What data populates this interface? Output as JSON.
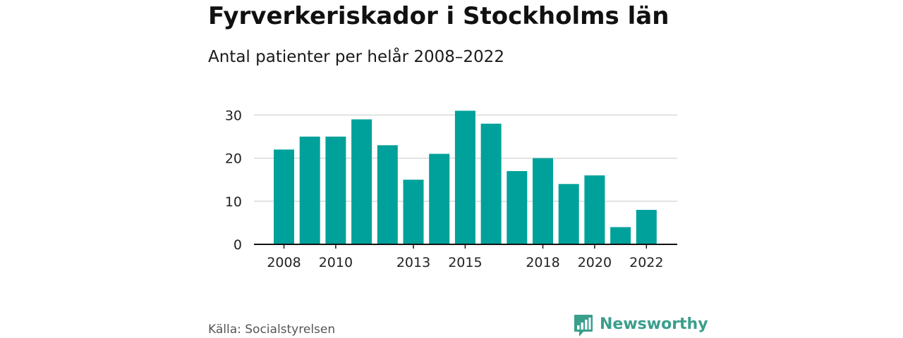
{
  "title": "Fyrverkeriskador i Stockholms län",
  "subtitle": "Antal patienter per helår 2008–2022",
  "source": "Källa: Socialstyrelsen",
  "logo": {
    "text": "Newsworthy",
    "color": "#3a9e8c",
    "icon": "newsworthy-bar-chart-bubble-icon"
  },
  "colors": {
    "bar": "#00a19a",
    "gridline": "#d9d9d9",
    "axis": "#111111"
  },
  "chart_data": {
    "type": "bar",
    "categories": [
      "2008",
      "2009",
      "2010",
      "2011",
      "2012",
      "2013",
      "2014",
      "2015",
      "2016",
      "2017",
      "2018",
      "2019",
      "2020",
      "2021",
      "2022"
    ],
    "values": [
      22,
      25,
      25,
      29,
      23,
      15,
      21,
      31,
      28,
      17,
      20,
      14,
      16,
      4,
      8
    ],
    "x_tick_labels": [
      "2008",
      "2010",
      "2013",
      "2015",
      "2018",
      "2020",
      "2022"
    ],
    "y_ticks": [
      0,
      10,
      20,
      30
    ],
    "ylim": [
      0,
      32
    ],
    "xlabel": "",
    "ylabel": "",
    "grid": true,
    "legend": "none"
  }
}
